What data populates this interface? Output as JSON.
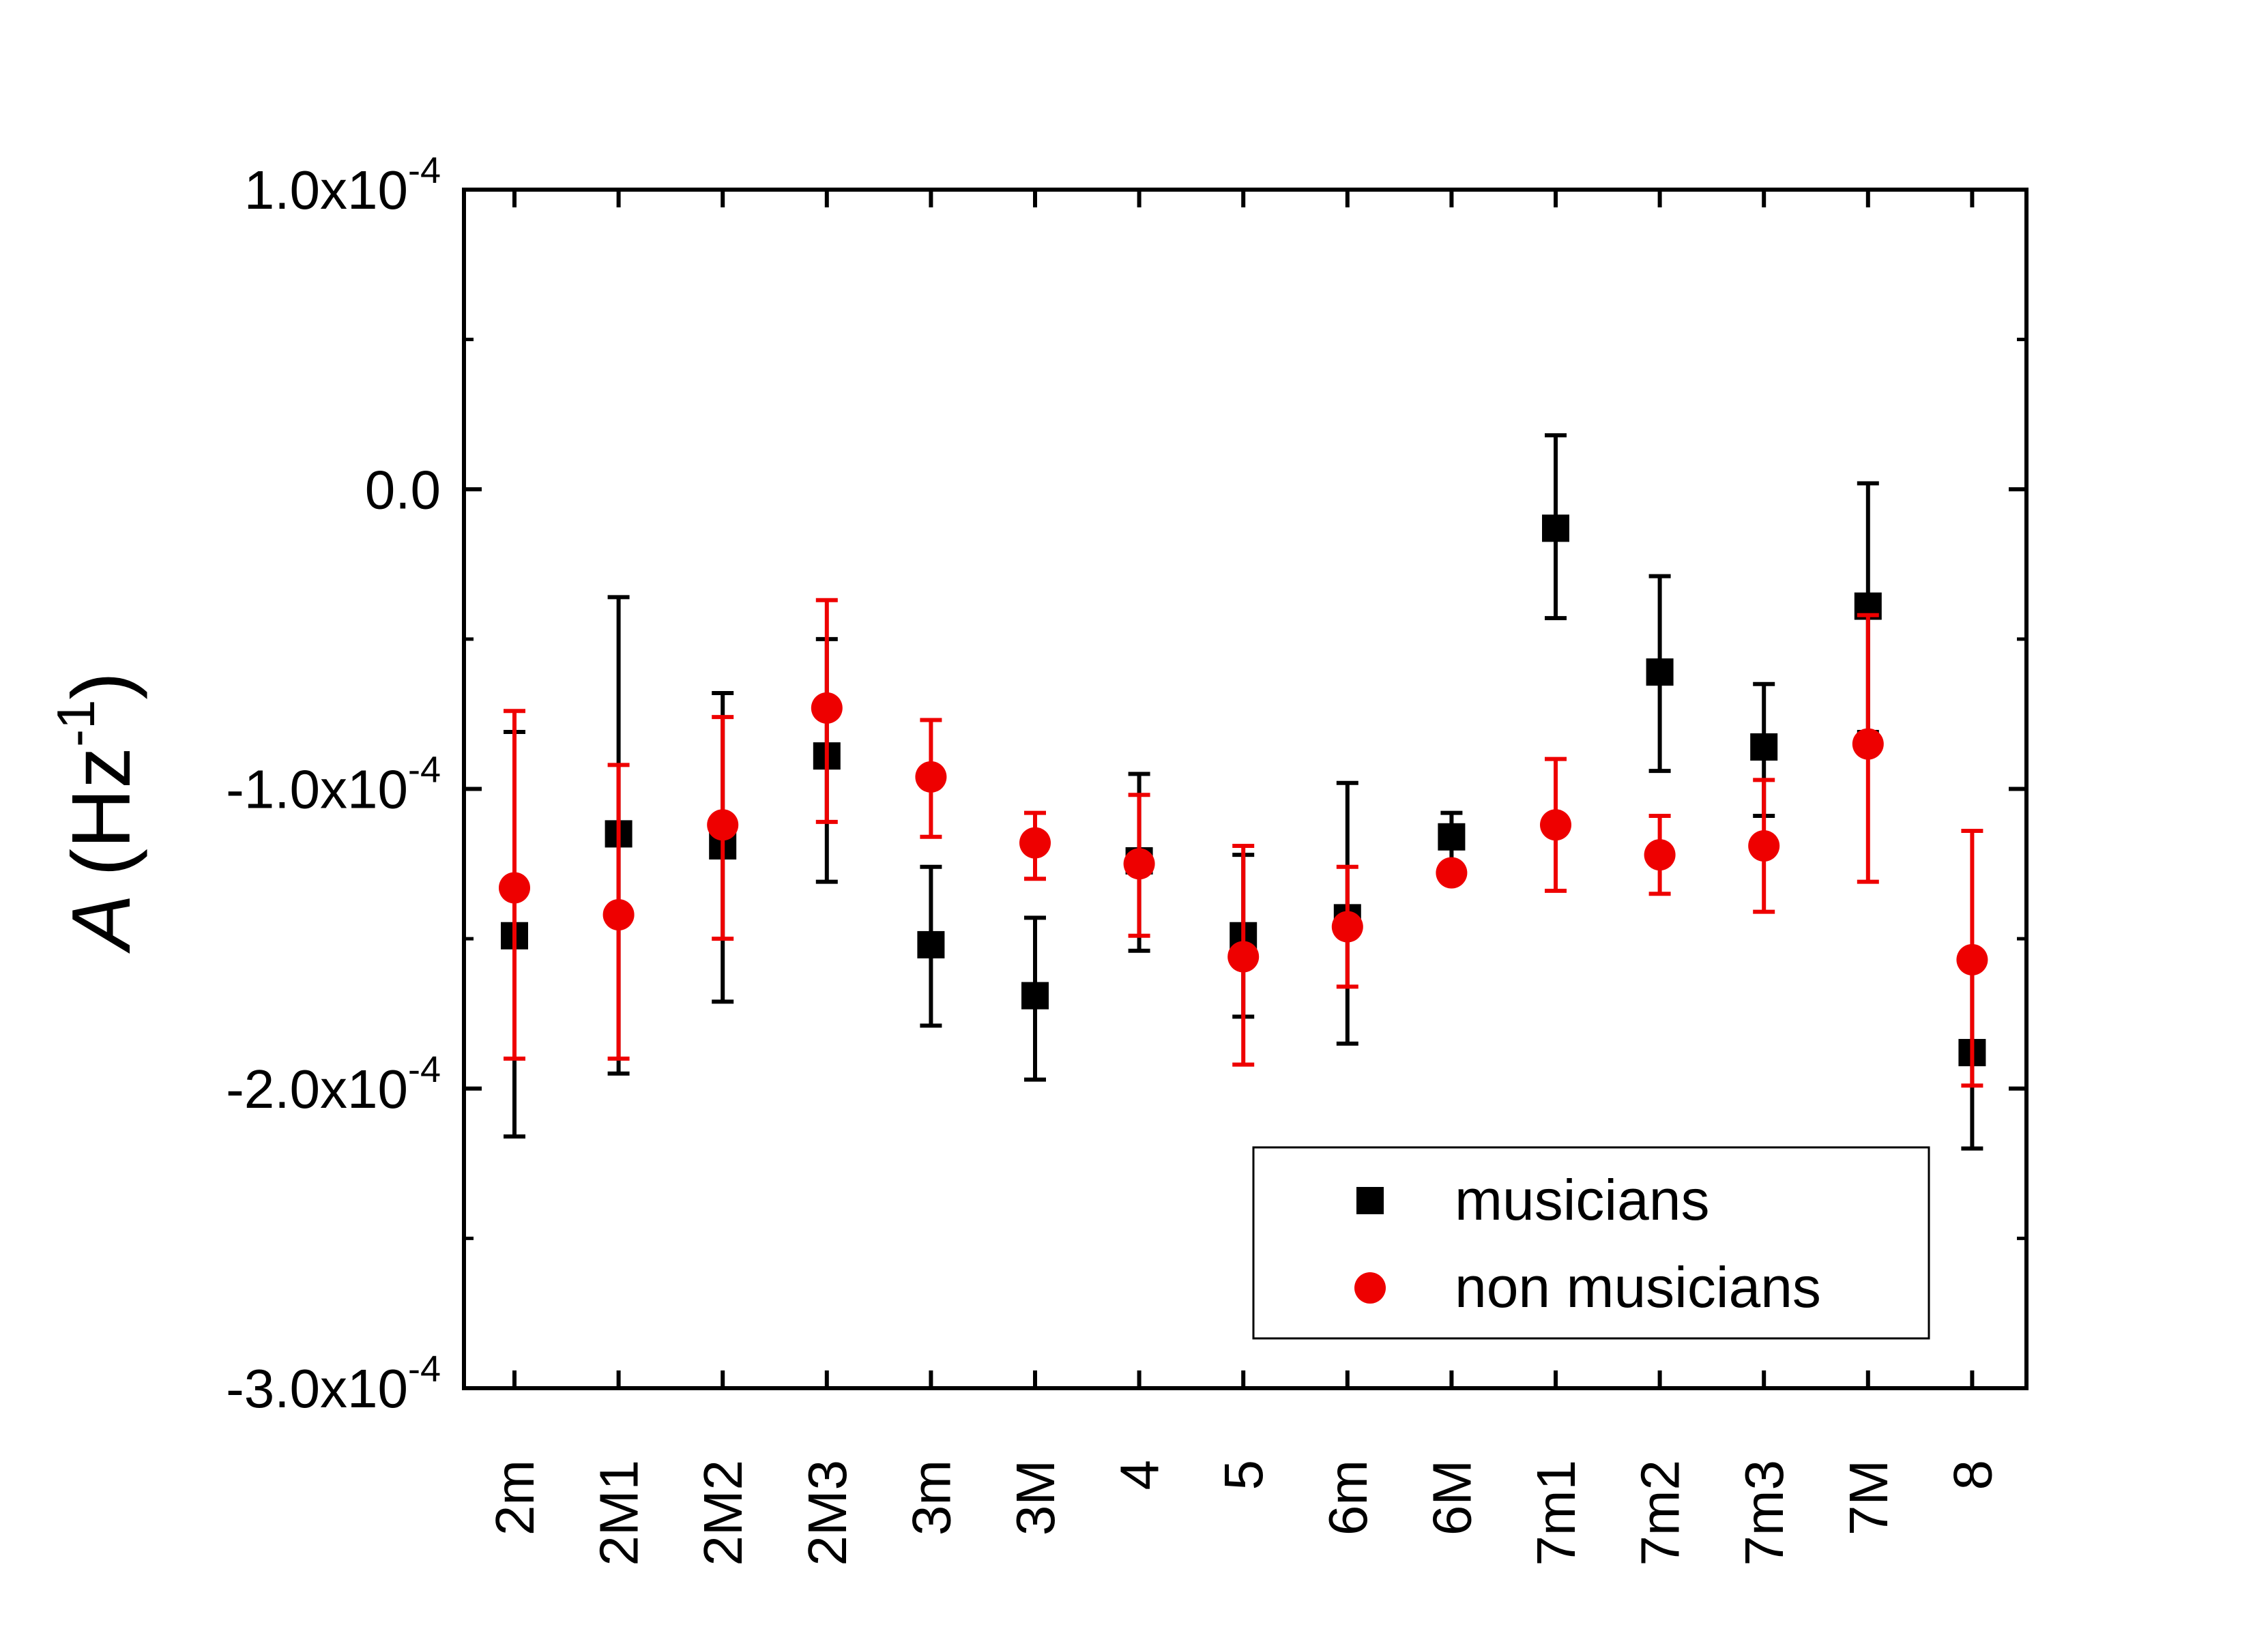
{
  "chart_data": {
    "type": "scatter",
    "title": "",
    "xlabel": "",
    "ylabel": {
      "symbol": "A",
      "unit_open": "(Hz",
      "unit_exp": "-1",
      "unit_close": ")"
    },
    "ylim": [
      -0.0003,
      0.0001
    ],
    "y_major_ticks": [
      {
        "value": 0.0001,
        "mantissa": "1.0x10",
        "exp": "-4"
      },
      {
        "value": 0.0,
        "mantissa": "0.0",
        "exp": ""
      },
      {
        "value": -0.0001,
        "mantissa": "-1.0x10",
        "exp": "-4"
      },
      {
        "value": -0.0002,
        "mantissa": "-2.0x10",
        "exp": "-4"
      },
      {
        "value": -0.0003,
        "mantissa": "-3.0x10",
        "exp": "-4"
      }
    ],
    "y_minor_ticks": [
      5e-05,
      -5e-05,
      -0.00015,
      -0.00025
    ],
    "categories": [
      "2m",
      "2M1",
      "2M2",
      "2M3",
      "3m",
      "3M",
      "4",
      "5",
      "6m",
      "6M",
      "7m1",
      "7m2",
      "7m3",
      "7M",
      "8"
    ],
    "legend_position": "lower-right",
    "series": [
      {
        "name": "musicians",
        "marker": "square",
        "color": "#000000",
        "values": [
          -0.000149,
          -0.000115,
          -0.000119,
          -8.9e-05,
          -0.000152,
          -0.000169,
          -0.000124,
          -0.000149,
          -0.000143,
          -0.000116,
          -1.3e-05,
          -6.1e-05,
          -8.6e-05,
          -3.9e-05,
          -0.000188
        ],
        "err_low": [
          -0.000216,
          -0.000195,
          -0.000171,
          -0.000131,
          -0.000179,
          -0.000197,
          -0.000154,
          -0.000176,
          -0.000185,
          -0.000125,
          -4.3e-05,
          -9.4e-05,
          -0.000109,
          -8.1e-05,
          -0.00022
        ],
        "err_high": [
          -8.1e-05,
          -3.6e-05,
          -6.8e-05,
          -5e-05,
          -0.000126,
          -0.000143,
          -9.5e-05,
          -0.000122,
          -9.8e-05,
          -0.000108,
          1.8e-05,
          -2.9e-05,
          -6.5e-05,
          2e-06,
          -0.000157
        ]
      },
      {
        "name": "non musicians",
        "marker": "circle",
        "color": "#ee0000",
        "values": [
          -0.000133,
          -0.000142,
          -0.000112,
          -7.3e-05,
          -9.6e-05,
          -0.000118,
          -0.000125,
          -0.000156,
          -0.000146,
          -0.000128,
          -0.000112,
          -0.000122,
          -0.000119,
          -8.5e-05,
          -0.000157
        ],
        "err_low": [
          -0.00019,
          -0.00019,
          -0.00015,
          -0.000111,
          -0.000116,
          -0.00013,
          -0.000149,
          -0.000192,
          -0.000166,
          -0.000131,
          -0.000134,
          -0.000135,
          -0.000141,
          -0.000131,
          -0.000199
        ],
        "err_high": [
          -7.4e-05,
          -9.2e-05,
          -7.6e-05,
          -3.7e-05,
          -7.7e-05,
          -0.000108,
          -0.000102,
          -0.000119,
          -0.000126,
          -0.000125,
          -9e-05,
          -0.000109,
          -9.7e-05,
          -4.2e-05,
          -0.000114
        ]
      }
    ]
  }
}
